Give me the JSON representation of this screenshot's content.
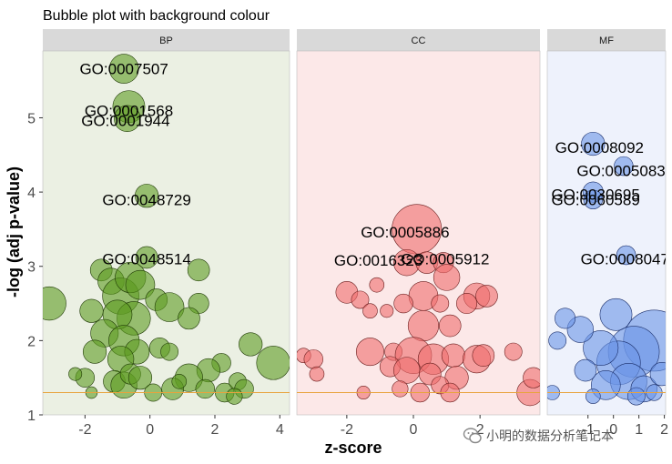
{
  "chart_data": {
    "type": "scatter",
    "title": "Bubble plot with background colour",
    "xlabel": "z-score",
    "ylabel": "-log (adj p-value)",
    "ylim": [
      1,
      5.9
    ],
    "y_ticks": [
      "1",
      "2",
      "3",
      "4",
      "5"
    ],
    "threshold": 1.3,
    "threshold_color": "#E8A33D",
    "watermark": "小明的数据分析笔记本",
    "panels": [
      {
        "name": "BP",
        "bg": "#EBF0E3",
        "fill": "#5E9B21",
        "stroke": "#1F3A05",
        "xlim": [
          -3.3,
          4.3
        ],
        "x_ticks": [
          "-2",
          "0",
          "2",
          "4"
        ],
        "x_tick_values": [
          -2,
          0,
          2,
          4
        ],
        "labels": [
          {
            "text": "GO:0007507",
            "x": -0.8,
            "y": 5.66
          },
          {
            "text": "GO:0001568",
            "x": -0.65,
            "y": 5.1
          },
          {
            "text": "GO:0001944",
            "x": -0.75,
            "y": 4.96
          },
          {
            "text": "GO:0048729",
            "x": -0.1,
            "y": 3.9
          },
          {
            "text": "GO:0048514",
            "x": -0.1,
            "y": 3.1
          }
        ],
        "points": [
          {
            "x": -0.8,
            "y": 5.66,
            "r": 2.0
          },
          {
            "x": -0.65,
            "y": 5.15,
            "r": 2.2
          },
          {
            "x": -0.7,
            "y": 4.99,
            "r": 1.8
          },
          {
            "x": -0.1,
            "y": 3.95,
            "r": 1.6
          },
          {
            "x": -0.1,
            "y": 3.12,
            "r": 1.5
          },
          {
            "x": -3.1,
            "y": 2.5,
            "r": 2.3
          },
          {
            "x": -1.5,
            "y": 2.95,
            "r": 1.5
          },
          {
            "x": -1.2,
            "y": 2.8,
            "r": 1.8
          },
          {
            "x": -0.9,
            "y": 2.6,
            "r": 2.5
          },
          {
            "x": -0.6,
            "y": 2.85,
            "r": 2.1
          },
          {
            "x": -0.3,
            "y": 2.75,
            "r": 2.0
          },
          {
            "x": -0.5,
            "y": 2.3,
            "r": 2.3
          },
          {
            "x": -1.0,
            "y": 2.35,
            "r": 2.0
          },
          {
            "x": -1.8,
            "y": 2.4,
            "r": 1.6
          },
          {
            "x": -1.4,
            "y": 2.1,
            "r": 1.9
          },
          {
            "x": -0.8,
            "y": 2.0,
            "r": 2.1
          },
          {
            "x": -0.4,
            "y": 1.85,
            "r": 1.7
          },
          {
            "x": 0.2,
            "y": 2.55,
            "r": 1.5
          },
          {
            "x": 0.6,
            "y": 2.45,
            "r": 2.0
          },
          {
            "x": 1.5,
            "y": 2.95,
            "r": 1.5
          },
          {
            "x": 1.5,
            "y": 2.5,
            "r": 1.4
          },
          {
            "x": 1.2,
            "y": 2.3,
            "r": 1.5
          },
          {
            "x": -1.7,
            "y": 1.85,
            "r": 1.6
          },
          {
            "x": -0.9,
            "y": 1.75,
            "r": 1.8
          },
          {
            "x": 0.3,
            "y": 1.9,
            "r": 1.4
          },
          {
            "x": 0.6,
            "y": 1.85,
            "r": 1.2
          },
          {
            "x": 3.1,
            "y": 1.95,
            "r": 1.6
          },
          {
            "x": 3.8,
            "y": 1.7,
            "r": 2.3
          },
          {
            "x": 2.2,
            "y": 1.7,
            "r": 1.3
          },
          {
            "x": 1.8,
            "y": 1.6,
            "r": 1.6
          },
          {
            "x": 1.2,
            "y": 1.5,
            "r": 1.9
          },
          {
            "x": -2.0,
            "y": 1.5,
            "r": 1.3
          },
          {
            "x": -1.1,
            "y": 1.45,
            "r": 1.5
          },
          {
            "x": -0.8,
            "y": 1.4,
            "r": 1.8
          },
          {
            "x": -0.6,
            "y": 1.55,
            "r": 1.4
          },
          {
            "x": -0.3,
            "y": 1.5,
            "r": 1.6
          },
          {
            "x": 0.7,
            "y": 1.35,
            "r": 1.5
          },
          {
            "x": 1.7,
            "y": 1.35,
            "r": 1.3
          },
          {
            "x": 2.3,
            "y": 1.3,
            "r": 1.3
          },
          {
            "x": 2.7,
            "y": 1.45,
            "r": 1.2
          },
          {
            "x": 2.9,
            "y": 1.35,
            "r": 1.3
          },
          {
            "x": 2.6,
            "y": 1.25,
            "r": 1.1
          },
          {
            "x": 0.1,
            "y": 1.3,
            "r": 1.2
          },
          {
            "x": -1.8,
            "y": 1.3,
            "r": 0.8
          },
          {
            "x": -2.3,
            "y": 1.55,
            "r": 0.9
          },
          {
            "x": 0.9,
            "y": 1.45,
            "r": 1.0
          }
        ]
      },
      {
        "name": "CC",
        "bg": "#FCE8E8",
        "fill": "#EF6C6C",
        "stroke": "#6A1E1E",
        "xlim": [
          -3.5,
          3.8
        ],
        "x_ticks": [
          "-2",
          "0",
          "2"
        ],
        "x_tick_values": [
          -2,
          0,
          2
        ],
        "labels": [
          {
            "text": "GO:0005886",
            "x": -0.25,
            "y": 3.46
          },
          {
            "text": "GO:0016323",
            "x": -1.05,
            "y": 3.08
          },
          {
            "text": "GO:0005912",
            "x": 0.95,
            "y": 3.1
          }
        ],
        "points": [
          {
            "x": 0.1,
            "y": 3.5,
            "r": 3.4
          },
          {
            "x": -0.2,
            "y": 3.05,
            "r": 1.8
          },
          {
            "x": 0.4,
            "y": 3.05,
            "r": 1.5
          },
          {
            "x": 0.9,
            "y": 3.05,
            "r": 1.4
          },
          {
            "x": 1.0,
            "y": 2.85,
            "r": 1.8
          },
          {
            "x": 0.3,
            "y": 2.6,
            "r": 2.0
          },
          {
            "x": -0.3,
            "y": 2.5,
            "r": 1.3
          },
          {
            "x": 0.8,
            "y": 2.5,
            "r": 1.2
          },
          {
            "x": -2.0,
            "y": 2.65,
            "r": 1.5
          },
          {
            "x": -1.1,
            "y": 2.75,
            "r": 1.0
          },
          {
            "x": -1.6,
            "y": 2.55,
            "r": 1.2
          },
          {
            "x": -1.3,
            "y": 2.4,
            "r": 1.0
          },
          {
            "x": -0.8,
            "y": 2.4,
            "r": 0.9
          },
          {
            "x": 1.9,
            "y": 2.6,
            "r": 1.8
          },
          {
            "x": 2.2,
            "y": 2.6,
            "r": 1.5
          },
          {
            "x": 1.6,
            "y": 2.5,
            "r": 1.4
          },
          {
            "x": 0.3,
            "y": 2.2,
            "r": 2.1
          },
          {
            "x": 1.1,
            "y": 2.2,
            "r": 1.5
          },
          {
            "x": -1.3,
            "y": 1.85,
            "r": 1.9
          },
          {
            "x": -0.6,
            "y": 1.85,
            "r": 1.2
          },
          {
            "x": 0.0,
            "y": 1.8,
            "r": 2.5
          },
          {
            "x": 0.6,
            "y": 1.75,
            "r": 2.1
          },
          {
            "x": 1.2,
            "y": 1.8,
            "r": 1.6
          },
          {
            "x": 1.9,
            "y": 1.75,
            "r": 1.9
          },
          {
            "x": 2.1,
            "y": 1.8,
            "r": 1.5
          },
          {
            "x": 3.0,
            "y": 1.85,
            "r": 1.2
          },
          {
            "x": -3.3,
            "y": 1.8,
            "r": 1.0
          },
          {
            "x": -3.0,
            "y": 1.75,
            "r": 1.3
          },
          {
            "x": -2.9,
            "y": 1.55,
            "r": 1.0
          },
          {
            "x": -0.7,
            "y": 1.65,
            "r": 1.4
          },
          {
            "x": -0.2,
            "y": 1.6,
            "r": 1.8
          },
          {
            "x": 0.5,
            "y": 1.55,
            "r": 1.5
          },
          {
            "x": 1.3,
            "y": 1.5,
            "r": 1.6
          },
          {
            "x": 0.8,
            "y": 1.4,
            "r": 1.2
          },
          {
            "x": -0.4,
            "y": 1.35,
            "r": 1.1
          },
          {
            "x": 0.2,
            "y": 1.3,
            "r": 1.3
          },
          {
            "x": -1.5,
            "y": 1.3,
            "r": 0.9
          },
          {
            "x": 1.1,
            "y": 1.3,
            "r": 1.3
          },
          {
            "x": 3.5,
            "y": 1.3,
            "r": 1.8
          },
          {
            "x": 3.6,
            "y": 1.5,
            "r": 1.4
          }
        ]
      },
      {
        "name": "MF",
        "bg": "#EEF2FC",
        "fill": "#6A94E6",
        "stroke": "#1A2E6A",
        "xlim": [
          -2.6,
          2.05
        ],
        "x_ticks": [
          "-1",
          "0",
          "1",
          "2"
        ],
        "x_tick_values": [
          -1,
          0,
          1,
          2
        ],
        "labels": [
          {
            "text": "GO:0008092",
            "x": -0.55,
            "y": 4.6
          },
          {
            "text": "GO:0005083",
            "x": 0.3,
            "y": 4.29
          },
          {
            "text": "GO:0030695",
            "x": -0.7,
            "y": 3.97
          },
          {
            "text": "GO:0060589",
            "x": -0.7,
            "y": 3.9
          },
          {
            "text": "GO:0008047",
            "x": 0.45,
            "y": 3.1
          }
        ],
        "points": [
          {
            "x": -0.8,
            "y": 4.65,
            "r": 1.6
          },
          {
            "x": 0.4,
            "y": 4.35,
            "r": 1.3
          },
          {
            "x": -0.8,
            "y": 4.0,
            "r": 1.4
          },
          {
            "x": -0.8,
            "y": 3.9,
            "r": 1.3
          },
          {
            "x": 0.5,
            "y": 3.15,
            "r": 1.3
          },
          {
            "x": 0.1,
            "y": 2.35,
            "r": 2.2
          },
          {
            "x": 1.6,
            "y": 2.0,
            "r": 4.2
          },
          {
            "x": 0.8,
            "y": 1.85,
            "r": 3.5
          },
          {
            "x": 0.2,
            "y": 1.7,
            "r": 3.0
          },
          {
            "x": -0.5,
            "y": 1.9,
            "r": 2.4
          },
          {
            "x": -1.3,
            "y": 2.15,
            "r": 1.8
          },
          {
            "x": -1.9,
            "y": 2.3,
            "r": 1.4
          },
          {
            "x": -2.2,
            "y": 2.0,
            "r": 1.2
          },
          {
            "x": 0.6,
            "y": 1.45,
            "r": 2.5
          },
          {
            "x": -0.3,
            "y": 1.4,
            "r": 2.0
          },
          {
            "x": 1.2,
            "y": 1.35,
            "r": 1.8
          },
          {
            "x": 1.9,
            "y": 1.55,
            "r": 1.6
          },
          {
            "x": -1.1,
            "y": 1.6,
            "r": 1.5
          },
          {
            "x": -2.4,
            "y": 1.3,
            "r": 1.0
          },
          {
            "x": 0.9,
            "y": 1.25,
            "r": 1.2
          },
          {
            "x": 1.6,
            "y": 1.3,
            "r": 1.1
          },
          {
            "x": -0.8,
            "y": 1.25,
            "r": 1.0
          }
        ]
      }
    ]
  }
}
